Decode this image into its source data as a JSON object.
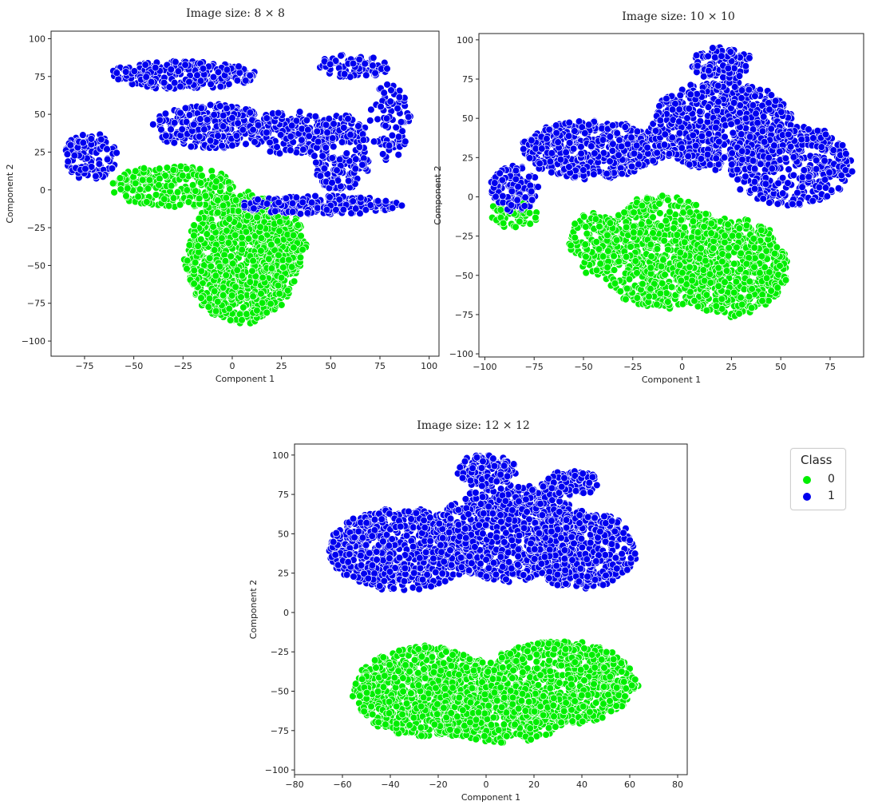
{
  "colors": {
    "class0": "#00ee00",
    "class1": "#0000ee",
    "edge": "#ffffff"
  },
  "legend": {
    "title": "Class",
    "entries": [
      {
        "label": "0",
        "color": "#00ee00"
      },
      {
        "label": "1",
        "color": "#0000ee"
      }
    ]
  },
  "chart_data": [
    {
      "type": "scatter",
      "title": "Image size: 8 × 8",
      "xlabel": "Component 1",
      "ylabel": "Component 2",
      "xlim": [
        -92,
        105
      ],
      "ylim": [
        -110,
        105
      ],
      "xticks": [
        -75,
        -50,
        -25,
        0,
        25,
        50,
        75,
        100
      ],
      "yticks": [
        -100,
        -75,
        -50,
        -25,
        0,
        25,
        50,
        75,
        100
      ],
      "grid": false,
      "series": [
        {
          "class": "0",
          "color": "#00ee00",
          "clusters": [
            {
              "cx": 5,
              "cy": -45,
              "rx": 28,
              "ry": 42,
              "n": 1100
            },
            {
              "cx": -30,
              "cy": 2,
              "rx": 30,
              "ry": 14,
              "n": 250
            },
            {
              "cx": 25,
              "cy": -35,
              "rx": 12,
              "ry": 22,
              "n": 150
            }
          ]
        },
        {
          "class": "1",
          "color": "#0000ee",
          "clusters": [
            {
              "cx": -25,
              "cy": 76,
              "rx": 38,
              "ry": 9,
              "n": 260
            },
            {
              "cx": -10,
              "cy": 42,
              "rx": 30,
              "ry": 14,
              "n": 280
            },
            {
              "cx": 30,
              "cy": 38,
              "rx": 22,
              "ry": 14,
              "n": 180
            },
            {
              "cx": 55,
              "cy": 25,
              "rx": 15,
              "ry": 25,
              "n": 200
            },
            {
              "cx": 45,
              "cy": -10,
              "rx": 40,
              "ry": 6,
              "n": 220
            },
            {
              "cx": -72,
              "cy": 22,
              "rx": 13,
              "ry": 16,
              "n": 120
            },
            {
              "cx": 62,
              "cy": 82,
              "rx": 18,
              "ry": 8,
              "n": 80
            },
            {
              "cx": 80,
              "cy": 45,
              "rx": 10,
              "ry": 25,
              "n": 80
            }
          ]
        }
      ]
    },
    {
      "type": "scatter",
      "title": "Image size: 10 × 10",
      "xlabel": "Component 1",
      "ylabel": "Component 2",
      "xlim": [
        -103,
        92
      ],
      "ylim": [
        -102,
        104
      ],
      "xticks": [
        -100,
        -75,
        -50,
        -25,
        0,
        25,
        50,
        75
      ],
      "yticks": [
        -100,
        -75,
        -50,
        -25,
        0,
        25,
        50,
        75,
        100
      ],
      "grid": false,
      "series": [
        {
          "class": "0",
          "color": "#00ee00",
          "clusters": [
            {
              "cx": -10,
              "cy": -35,
              "rx": 32,
              "ry": 35,
              "n": 800
            },
            {
              "cx": 25,
              "cy": -45,
              "rx": 28,
              "ry": 30,
              "n": 650
            },
            {
              "cx": -45,
              "cy": -30,
              "rx": 12,
              "ry": 20,
              "n": 120
            },
            {
              "cx": -85,
              "cy": -10,
              "rx": 12,
              "ry": 10,
              "n": 60
            }
          ]
        },
        {
          "class": "1",
          "color": "#0000ee",
          "clusters": [
            {
              "cx": -45,
              "cy": 30,
              "rx": 35,
              "ry": 18,
              "n": 500
            },
            {
              "cx": 20,
              "cy": 45,
              "rx": 35,
              "ry": 28,
              "n": 700
            },
            {
              "cx": 55,
              "cy": 20,
              "rx": 30,
              "ry": 25,
              "n": 450
            },
            {
              "cx": -85,
              "cy": 5,
              "rx": 12,
              "ry": 14,
              "n": 120
            },
            {
              "cx": 20,
              "cy": 85,
              "rx": 15,
              "ry": 10,
              "n": 120
            }
          ]
        }
      ]
    },
    {
      "type": "scatter",
      "title": "Image size: 12 × 12",
      "xlabel": "Component 1",
      "ylabel": "Component 2",
      "xlim": [
        -80,
        84
      ],
      "ylim": [
        -103,
        107
      ],
      "xticks": [
        -80,
        -60,
        -40,
        -20,
        0,
        20,
        40,
        60,
        80
      ],
      "yticks": [
        -100,
        -75,
        -50,
        -25,
        0,
        25,
        50,
        75,
        100
      ],
      "grid": false,
      "series": [
        {
          "class": "0",
          "color": "#00ee00",
          "clusters": [
            {
              "cx": -25,
              "cy": -50,
              "rx": 30,
              "ry": 28,
              "n": 900
            },
            {
              "cx": 30,
              "cy": -45,
              "rx": 32,
              "ry": 26,
              "n": 900
            },
            {
              "cx": 5,
              "cy": -65,
              "rx": 28,
              "ry": 18,
              "n": 400
            }
          ]
        },
        {
          "class": "1",
          "color": "#0000ee",
          "clusters": [
            {
              "cx": -35,
              "cy": 40,
              "rx": 30,
              "ry": 25,
              "n": 800
            },
            {
              "cx": 10,
              "cy": 50,
              "rx": 30,
              "ry": 30,
              "n": 800
            },
            {
              "cx": 40,
              "cy": 40,
              "rx": 22,
              "ry": 25,
              "n": 500
            },
            {
              "cx": 0,
              "cy": 90,
              "rx": 12,
              "ry": 10,
              "n": 150
            },
            {
              "cx": 35,
              "cy": 82,
              "rx": 12,
              "ry": 8,
              "n": 100
            }
          ]
        }
      ]
    }
  ]
}
